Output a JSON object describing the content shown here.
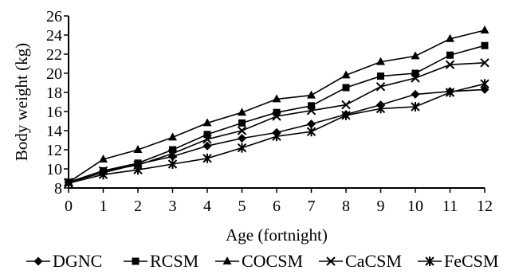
{
  "chart_data": {
    "type": "line",
    "xlabel": "Age (fortnight)",
    "ylabel": "Body weight (kg)",
    "xlim": [
      0,
      12
    ],
    "ylim": [
      8,
      26
    ],
    "x": [
      0,
      1,
      2,
      3,
      4,
      5,
      6,
      7,
      8,
      9,
      10,
      11,
      12
    ],
    "x_tick_labels": [
      "0",
      "1",
      "2",
      "3",
      "4",
      "5",
      "6",
      "7",
      "8",
      "9",
      "10",
      "11",
      "12"
    ],
    "y_tick_labels": [
      "8",
      "10",
      "12",
      "14",
      "16",
      "18",
      "20",
      "22",
      "24",
      "26"
    ],
    "grid": false,
    "legend_position": "bottom",
    "series": [
      {
        "name": "DGNC",
        "marker": "diamond",
        "values": [
          8.6,
          9.6,
          10.5,
          11.3,
          12.4,
          13.2,
          13.8,
          14.7,
          15.7,
          16.7,
          17.8,
          18.1,
          18.3
        ]
      },
      {
        "name": "RCSM",
        "marker": "square",
        "values": [
          8.6,
          9.8,
          10.6,
          12.0,
          13.6,
          14.8,
          15.9,
          16.6,
          18.5,
          19.7,
          20.0,
          21.9,
          22.9
        ]
      },
      {
        "name": "COCSM",
        "marker": "triangle",
        "values": [
          8.6,
          11.0,
          12.0,
          13.3,
          14.8,
          15.9,
          17.3,
          17.7,
          19.8,
          21.2,
          21.8,
          23.6,
          24.5
        ]
      },
      {
        "name": "CaCSM",
        "marker": "x",
        "values": [
          8.6,
          9.8,
          10.4,
          11.6,
          13.1,
          14.0,
          15.5,
          16.1,
          16.7,
          18.6,
          19.5,
          20.9,
          21.1
        ]
      },
      {
        "name": "FeCSM",
        "marker": "star",
        "values": [
          8.5,
          9.4,
          9.9,
          10.5,
          11.1,
          12.2,
          13.4,
          13.9,
          15.6,
          16.3,
          16.5,
          18.0,
          18.9
        ]
      }
    ]
  }
}
